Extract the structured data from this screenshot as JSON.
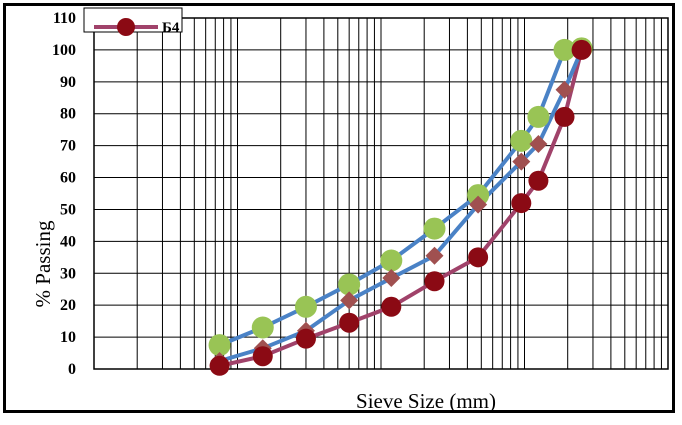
{
  "chart_data": {
    "type": "scatter",
    "x_scale": "log",
    "xlabel": "Sieve Size (mm)",
    "ylabel": "% Passing",
    "ylim": [
      0,
      110
    ],
    "xlim": [
      0.01,
      100
    ],
    "y_ticks": [
      "0",
      "10",
      "20",
      "30",
      "40",
      "50",
      "60",
      "70",
      "80",
      "90",
      "100",
      "110"
    ],
    "grid": true,
    "legend": {
      "placement": "top-left",
      "entries": [
        {
          "label": "Б4",
          "series": 0
        }
      ]
    },
    "series": [
      {
        "name": "Б4",
        "line_color": "#a0426a",
        "marker": "circle",
        "marker_color": "#8b0a14",
        "points": [
          {
            "x": 0.075,
            "y": 1
          },
          {
            "x": 0.15,
            "y": 4
          },
          {
            "x": 0.3,
            "y": 9.5
          },
          {
            "x": 0.6,
            "y": 14.5
          },
          {
            "x": 1.18,
            "y": 19.5
          },
          {
            "x": 2.36,
            "y": 27.5
          },
          {
            "x": 4.75,
            "y": 35
          },
          {
            "x": 9.5,
            "y": 52
          },
          {
            "x": 12.5,
            "y": 59
          },
          {
            "x": 19,
            "y": 79
          },
          {
            "x": 25,
            "y": 100
          }
        ]
      },
      {
        "line_color": "#4a82c6",
        "marker": "diamond",
        "marker_color": "#a05050",
        "points": [
          {
            "x": 0.075,
            "y": 2.5
          },
          {
            "x": 0.15,
            "y": 6.5
          },
          {
            "x": 0.3,
            "y": 12
          },
          {
            "x": 0.6,
            "y": 21.5
          },
          {
            "x": 1.18,
            "y": 28.5
          },
          {
            "x": 2.36,
            "y": 35.5
          },
          {
            "x": 4.75,
            "y": 51.5
          },
          {
            "x": 9.5,
            "y": 65
          },
          {
            "x": 12.5,
            "y": 70.5
          },
          {
            "x": 19,
            "y": 87.5
          },
          {
            "x": 25,
            "y": 100
          }
        ]
      },
      {
        "line_color": "#4a82c6",
        "marker": "circle",
        "marker_color": "#99c455",
        "points": [
          {
            "x": 0.075,
            "y": 7.5
          },
          {
            "x": 0.15,
            "y": 13
          },
          {
            "x": 0.3,
            "y": 19.5
          },
          {
            "x": 0.6,
            "y": 26.5
          },
          {
            "x": 1.18,
            "y": 34
          },
          {
            "x": 2.36,
            "y": 44
          },
          {
            "x": 4.75,
            "y": 54.5
          },
          {
            "x": 9.5,
            "y": 71.5
          },
          {
            "x": 12.5,
            "y": 79
          },
          {
            "x": 19,
            "y": 100
          },
          {
            "x": 25,
            "y": 100.5
          }
        ]
      }
    ]
  }
}
